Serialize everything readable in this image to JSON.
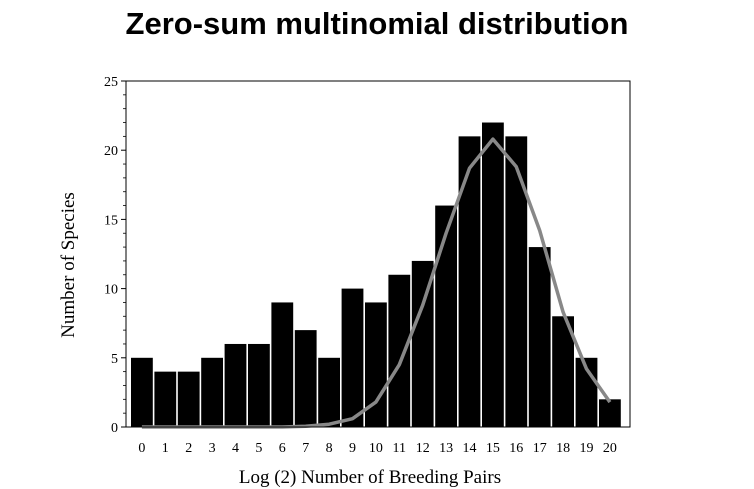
{
  "title": "Zero-sum multinomial distribution",
  "chart_data": {
    "type": "bar",
    "xlabel": "Log (2) Number of Breeding Pairs",
    "ylabel": "Number of Species",
    "categories": [
      "0",
      "1",
      "2",
      "3",
      "4",
      "5",
      "6",
      "7",
      "8",
      "9",
      "10",
      "11",
      "12",
      "13",
      "14",
      "15",
      "16",
      "17",
      "18",
      "19",
      "20"
    ],
    "values": [
      5,
      4,
      4,
      5,
      6,
      6,
      9,
      7,
      5,
      10,
      9,
      11,
      12,
      16,
      21,
      22,
      21,
      13,
      8,
      5,
      2
    ],
    "ylim": [
      0,
      25
    ],
    "yticks": [
      "0",
      "5",
      "10",
      "15",
      "20",
      "25"
    ],
    "bar_color": "#000000",
    "series": [
      {
        "type": "line",
        "color": "#888888",
        "values": [
          0,
          0,
          0,
          0,
          0,
          0,
          0,
          0.05,
          0.2,
          0.6,
          1.8,
          4.5,
          8.8,
          14.0,
          18.7,
          20.8,
          18.8,
          14.2,
          8.3,
          4.2,
          1.8
        ]
      }
    ],
    "grid": false,
    "legend": "none"
  }
}
